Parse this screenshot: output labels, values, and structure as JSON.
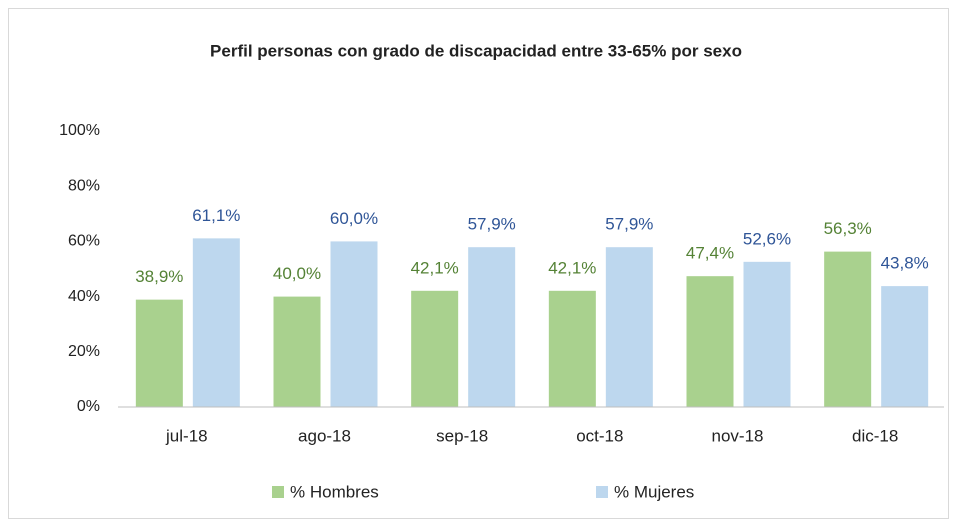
{
  "chart_data": {
    "type": "bar",
    "title": "Perfil personas con grado de discapacidad  entre 33-65% por sexo",
    "categories": [
      "jul-18",
      "ago-18",
      "sep-18",
      "oct-18",
      "nov-18",
      "dic-18"
    ],
    "series": [
      {
        "name": "% Hombres",
        "color": "#a9d18e",
        "label_color": "#548235",
        "values": [
          38.9,
          40.0,
          42.1,
          42.1,
          47.4,
          56.3
        ],
        "value_labels": [
          "38,9%",
          "40,0%",
          "42,1%",
          "42,1%",
          "47,4%",
          "56,3%"
        ]
      },
      {
        "name": "% Mujeres",
        "color": "#bdd7ee",
        "label_color": "#2f5597",
        "values": [
          61.1,
          60.0,
          57.9,
          57.9,
          52.6,
          43.8
        ],
        "value_labels": [
          "61,1%",
          "60,0%",
          "57,9%",
          "57,9%",
          "52,6%",
          "43,8%"
        ]
      }
    ],
    "ylim": [
      0,
      100
    ],
    "yticks": [
      {
        "value": 0,
        "label": "0%"
      },
      {
        "value": 20,
        "label": "20%"
      },
      {
        "value": 40,
        "label": "40%"
      },
      {
        "value": 60,
        "label": "60%"
      },
      {
        "value": 80,
        "label": "80%"
      },
      {
        "value": 100,
        "label": "100%"
      }
    ],
    "grid": false,
    "legend": "bottom"
  }
}
